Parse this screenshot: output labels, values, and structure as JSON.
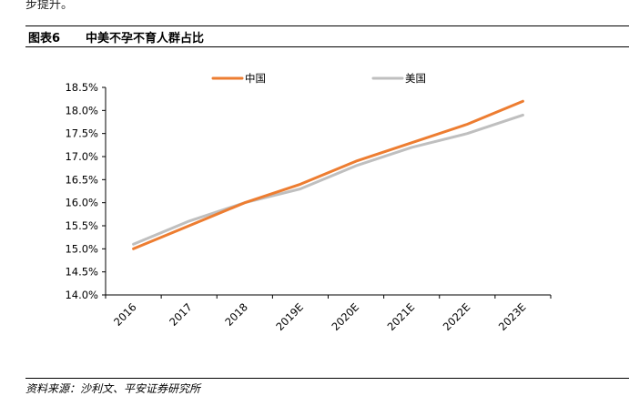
{
  "page": {
    "top_fragment": "步提升。",
    "figure_label": "图表6",
    "figure_title": "中美不孕不育人群占比",
    "source": "资料来源：沙利文、平安证券研究所"
  },
  "colors": {
    "china": "#ED7D31",
    "usa": "#BFBFBF",
    "axis": "#000000"
  },
  "chart_data": {
    "type": "line",
    "categories": [
      "2016",
      "2017",
      "2018",
      "2019E",
      "2020E",
      "2021E",
      "2022E",
      "2023E"
    ],
    "series": [
      {
        "name": "中国",
        "values": [
          15.0,
          15.5,
          16.0,
          16.4,
          16.9,
          17.3,
          17.7,
          18.2
        ]
      },
      {
        "name": "美国",
        "values": [
          15.1,
          15.6,
          16.0,
          16.3,
          16.8,
          17.2,
          17.5,
          17.9
        ]
      }
    ],
    "ylim": [
      14.0,
      18.5
    ],
    "yticks": [
      "14.0%",
      "14.5%",
      "15.0%",
      "15.5%",
      "16.0%",
      "16.5%",
      "17.0%",
      "17.5%",
      "18.0%",
      "18.5%"
    ],
    "ytick_values": [
      14.0,
      14.5,
      15.0,
      15.5,
      16.0,
      16.5,
      17.0,
      17.5,
      18.0,
      18.5
    ],
    "legend_position": "top-center",
    "grid": false,
    "title": "",
    "xlabel": "",
    "ylabel": ""
  }
}
